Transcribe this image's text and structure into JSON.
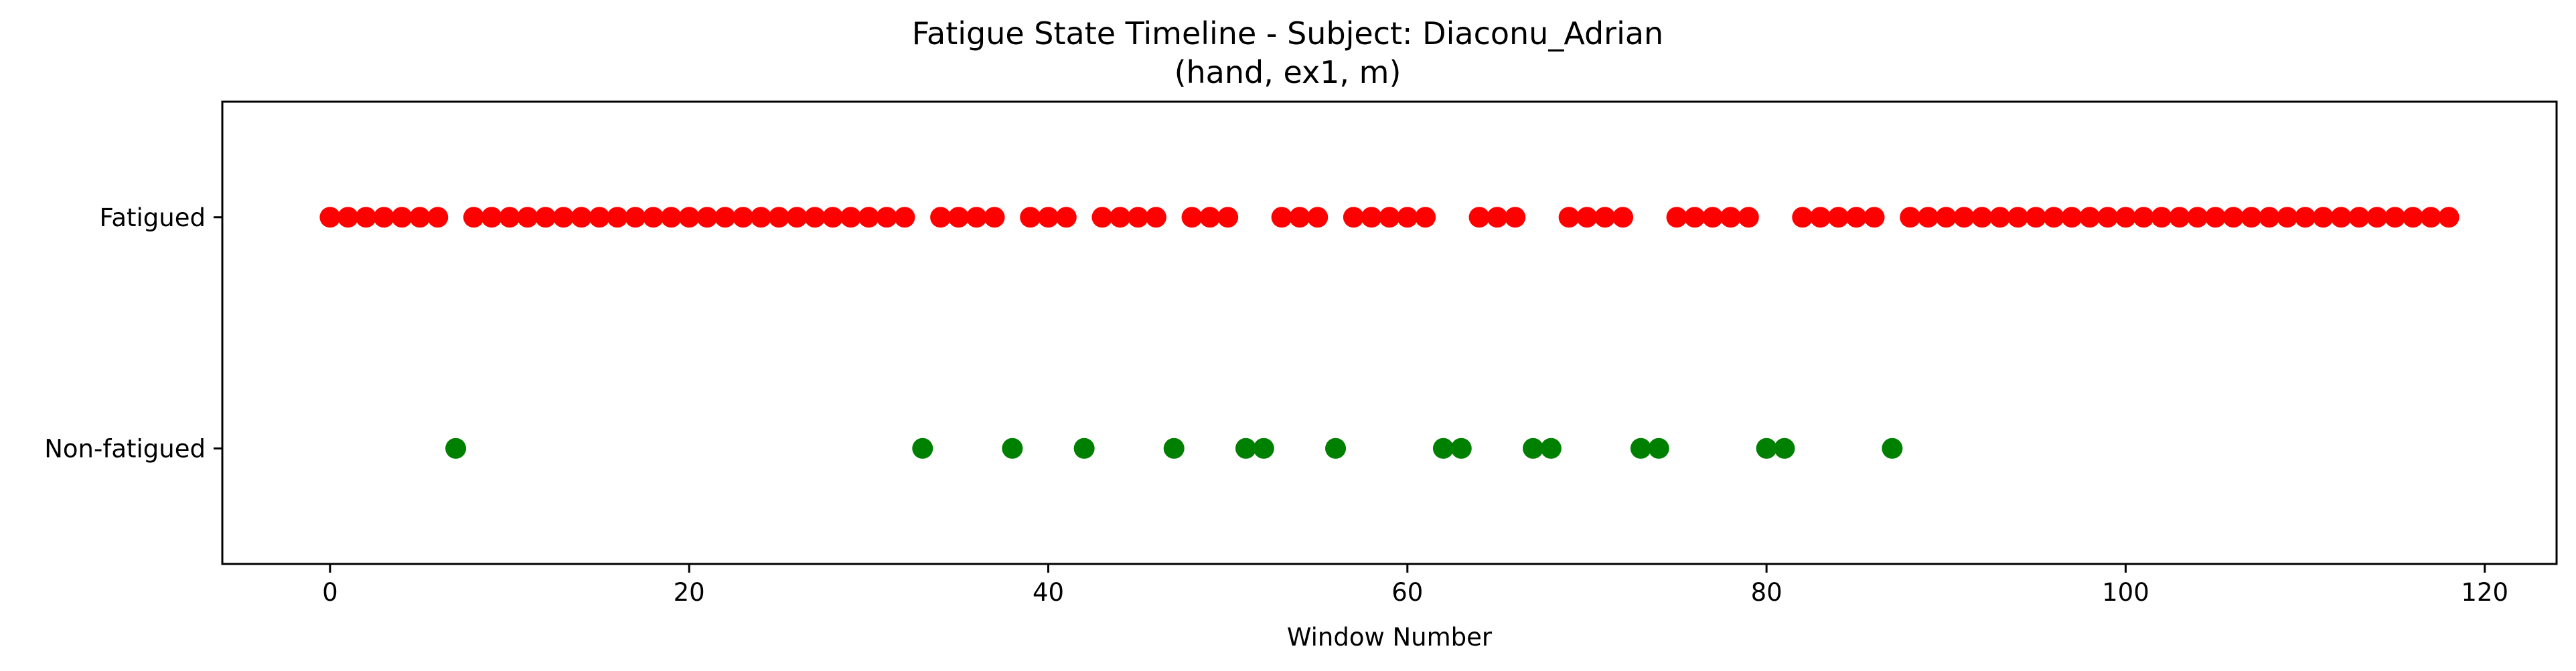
{
  "chart_data": {
    "type": "scatter",
    "title": "Fatigue State Timeline - Subject: Diaconu_Adrian",
    "subtitle": "(hand, ex1, m)",
    "xlabel": "Window Number",
    "ylabel": "",
    "xlim": [
      -6,
      124
    ],
    "ylim": [
      -0.5,
      1.5
    ],
    "x_ticks": [
      0,
      20,
      40,
      60,
      80,
      100,
      120
    ],
    "y_ticks": [
      {
        "value": 1,
        "label": "Fatigued"
      },
      {
        "value": 0,
        "label": "Non-fatigued"
      }
    ],
    "grid": false,
    "series": [
      {
        "label": "Fatigued",
        "y": 1,
        "color": "#ff0000",
        "x": [
          0,
          1,
          2,
          3,
          4,
          5,
          6,
          8,
          9,
          10,
          11,
          12,
          13,
          14,
          15,
          16,
          17,
          18,
          19,
          20,
          21,
          22,
          23,
          24,
          25,
          26,
          27,
          28,
          29,
          30,
          31,
          32,
          34,
          35,
          36,
          37,
          39,
          40,
          41,
          43,
          44,
          45,
          46,
          48,
          49,
          50,
          53,
          54,
          55,
          57,
          58,
          59,
          60,
          61,
          64,
          65,
          66,
          69,
          70,
          71,
          72,
          75,
          76,
          77,
          78,
          79,
          82,
          83,
          84,
          85,
          86,
          88,
          89,
          90,
          91,
          92,
          93,
          94,
          95,
          96,
          97,
          98,
          99,
          100,
          101,
          102,
          103,
          104,
          105,
          106,
          107,
          108,
          109,
          110,
          111,
          112,
          113,
          114,
          115,
          116,
          117,
          118
        ]
      },
      {
        "label": "Non-fatigued",
        "y": 0,
        "color": "#008000",
        "x": [
          7,
          33,
          38,
          42,
          47,
          51,
          52,
          56,
          62,
          63,
          67,
          68,
          73,
          74,
          80,
          81,
          87
        ]
      }
    ]
  }
}
